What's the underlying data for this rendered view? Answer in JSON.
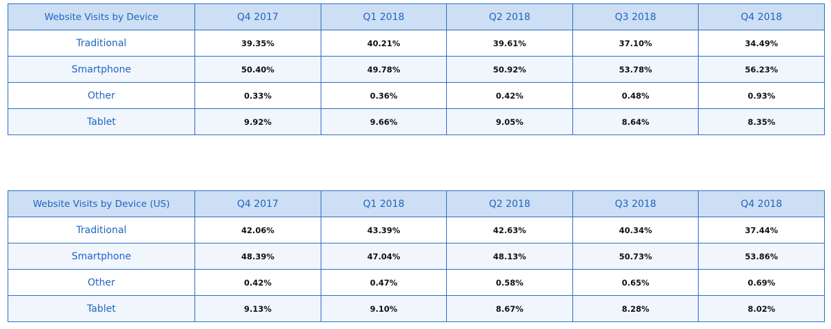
{
  "chart_data": [
    {
      "type": "table",
      "title": "Website Visits by Device",
      "columns": [
        "Q4 2017",
        "Q1 2018",
        "Q2 2018",
        "Q3 2018",
        "Q4 2018"
      ],
      "rows": [
        {
          "label": "Traditional",
          "values": [
            "39.35%",
            "40.21%",
            "39.61%",
            "37.10%",
            "34.49%"
          ]
        },
        {
          "label": "Smartphone",
          "values": [
            "50.40%",
            "49.78%",
            "50.92%",
            "53.78%",
            "56.23%"
          ]
        },
        {
          "label": "Other",
          "values": [
            "0.33%",
            "0.36%",
            "0.42%",
            "0.48%",
            "0.93%"
          ]
        },
        {
          "label": "Tablet",
          "values": [
            "9.92%",
            "9.66%",
            "9.05%",
            "8.64%",
            "8.35%"
          ]
        }
      ]
    },
    {
      "type": "table",
      "title": "Website Visits by Device (US)",
      "columns": [
        "Q4 2017",
        "Q1 2018",
        "Q2 2018",
        "Q3 2018",
        "Q4 2018"
      ],
      "rows": [
        {
          "label": "Traditional",
          "values": [
            "42.06%",
            "43.39%",
            "42.63%",
            "40.34%",
            "37.44%"
          ]
        },
        {
          "label": "Smartphone",
          "values": [
            "48.39%",
            "47.04%",
            "48.13%",
            "50.73%",
            "53.86%"
          ]
        },
        {
          "label": "Other",
          "values": [
            "0.42%",
            "0.47%",
            "0.58%",
            "0.65%",
            "0.69%"
          ]
        },
        {
          "label": "Tablet",
          "values": [
            "9.13%",
            "9.10%",
            "8.67%",
            "8.28%",
            "8.02%"
          ]
        }
      ]
    }
  ],
  "colors": {
    "header_bg": "#cddff4",
    "header_text": "#1f63c2",
    "border": "#2b6cc4",
    "cell_text": "#111111",
    "alt_row_bg": "#f0f6fc"
  }
}
